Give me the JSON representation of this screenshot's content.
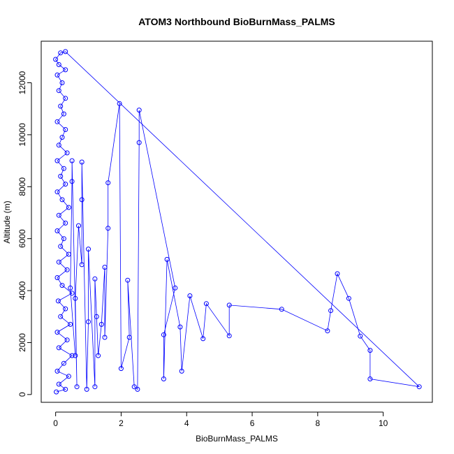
{
  "chart_data": {
    "type": "scatter",
    "title": "ATOM3 Northbound BioBurnMass_PALMS",
    "xlabel": "BioBurnMass_PALMS",
    "ylabel": "Altitude (m)",
    "xlim": [
      -0.44,
      11.5
    ],
    "ylim": [
      -300,
      13600
    ],
    "xticks": [
      0,
      2,
      4,
      6,
      8,
      10
    ],
    "yticks": [
      0,
      2000,
      4000,
      6000,
      8000,
      10000,
      12000
    ],
    "grid": false,
    "legend": "none",
    "marker": "open-circle",
    "connected_by_lines": true,
    "colors": {
      "series": "#0000ff",
      "axes": "#000000",
      "background": "#ffffff"
    },
    "series": [
      {
        "values_note": "",
        "points": [
          [
            0.02,
            100
          ],
          [
            0.3,
            200
          ],
          [
            0.1,
            400
          ],
          [
            0.4,
            700
          ],
          [
            0.05,
            900
          ],
          [
            0.25,
            1200
          ],
          [
            0.5,
            1500
          ],
          [
            0.1,
            1800
          ],
          [
            0.35,
            2100
          ],
          [
            0.05,
            2400
          ],
          [
            0.45,
            2700
          ],
          [
            0.15,
            3000
          ],
          [
            0.3,
            3300
          ],
          [
            0.08,
            3600
          ],
          [
            0.5,
            3900
          ],
          [
            0.2,
            4200
          ],
          [
            0.05,
            4500
          ],
          [
            0.35,
            4800
          ],
          [
            0.1,
            5100
          ],
          [
            0.4,
            5400
          ],
          [
            0.15,
            5700
          ],
          [
            0.25,
            6000
          ],
          [
            0.05,
            6300
          ],
          [
            0.3,
            6600
          ],
          [
            0.1,
            6900
          ],
          [
            0.4,
            7200
          ],
          [
            0.2,
            7500
          ],
          [
            0.05,
            7800
          ],
          [
            0.3,
            8100
          ],
          [
            0.15,
            8400
          ],
          [
            0.25,
            8700
          ],
          [
            0.05,
            9000
          ],
          [
            0.35,
            9300
          ],
          [
            0.1,
            9600
          ],
          [
            0.2,
            9900
          ],
          [
            0.3,
            10200
          ],
          [
            0.05,
            10500
          ],
          [
            0.25,
            10800
          ],
          [
            0.15,
            11100
          ],
          [
            0.3,
            11400
          ],
          [
            0.1,
            11700
          ],
          [
            0.2,
            12000
          ],
          [
            0.05,
            12300
          ],
          [
            0.3,
            12500
          ],
          [
            0.1,
            12700
          ],
          [
            0.0,
            12900
          ],
          [
            0.15,
            13150
          ],
          [
            0.3,
            13200
          ],
          [
            11.1,
            300
          ],
          [
            9.6,
            600
          ],
          [
            9.6,
            1700
          ],
          [
            9.3,
            2250
          ],
          [
            8.95,
            3700
          ],
          [
            8.6,
            4650
          ],
          [
            8.4,
            3230
          ],
          [
            8.3,
            2450
          ],
          [
            6.9,
            3280
          ],
          [
            5.3,
            3440
          ],
          [
            5.3,
            2260
          ],
          [
            4.6,
            3500
          ],
          [
            4.5,
            2150
          ],
          [
            4.1,
            3800
          ],
          [
            3.85,
            900
          ],
          [
            3.8,
            2600
          ],
          [
            3.4,
            5200
          ],
          [
            3.3,
            600
          ],
          [
            3.3,
            2300
          ],
          [
            3.65,
            4100
          ],
          [
            2.55,
            10950
          ],
          [
            2.55,
            9700
          ],
          [
            2.5,
            200
          ],
          [
            2.4,
            300
          ],
          [
            2.2,
            4400
          ],
          [
            2.25,
            2200
          ],
          [
            2.0,
            1000
          ],
          [
            1.95,
            11200
          ],
          [
            1.6,
            8150
          ],
          [
            1.6,
            6400
          ],
          [
            1.5,
            2200
          ],
          [
            1.5,
            4900
          ],
          [
            1.4,
            2700
          ],
          [
            1.3,
            1500
          ],
          [
            1.25,
            3000
          ],
          [
            1.2,
            4450
          ],
          [
            1.2,
            300
          ],
          [
            1.0,
            5600
          ],
          [
            1.0,
            2800
          ],
          [
            0.95,
            200
          ],
          [
            0.8,
            8950
          ],
          [
            0.8,
            7500
          ],
          [
            0.8,
            5000
          ],
          [
            0.7,
            6500
          ],
          [
            0.6,
            3700
          ],
          [
            0.65,
            300
          ],
          [
            0.5,
            9000
          ],
          [
            0.5,
            8200
          ],
          [
            0.45,
            4100
          ],
          [
            0.6,
            1500
          ]
        ]
      }
    ]
  }
}
